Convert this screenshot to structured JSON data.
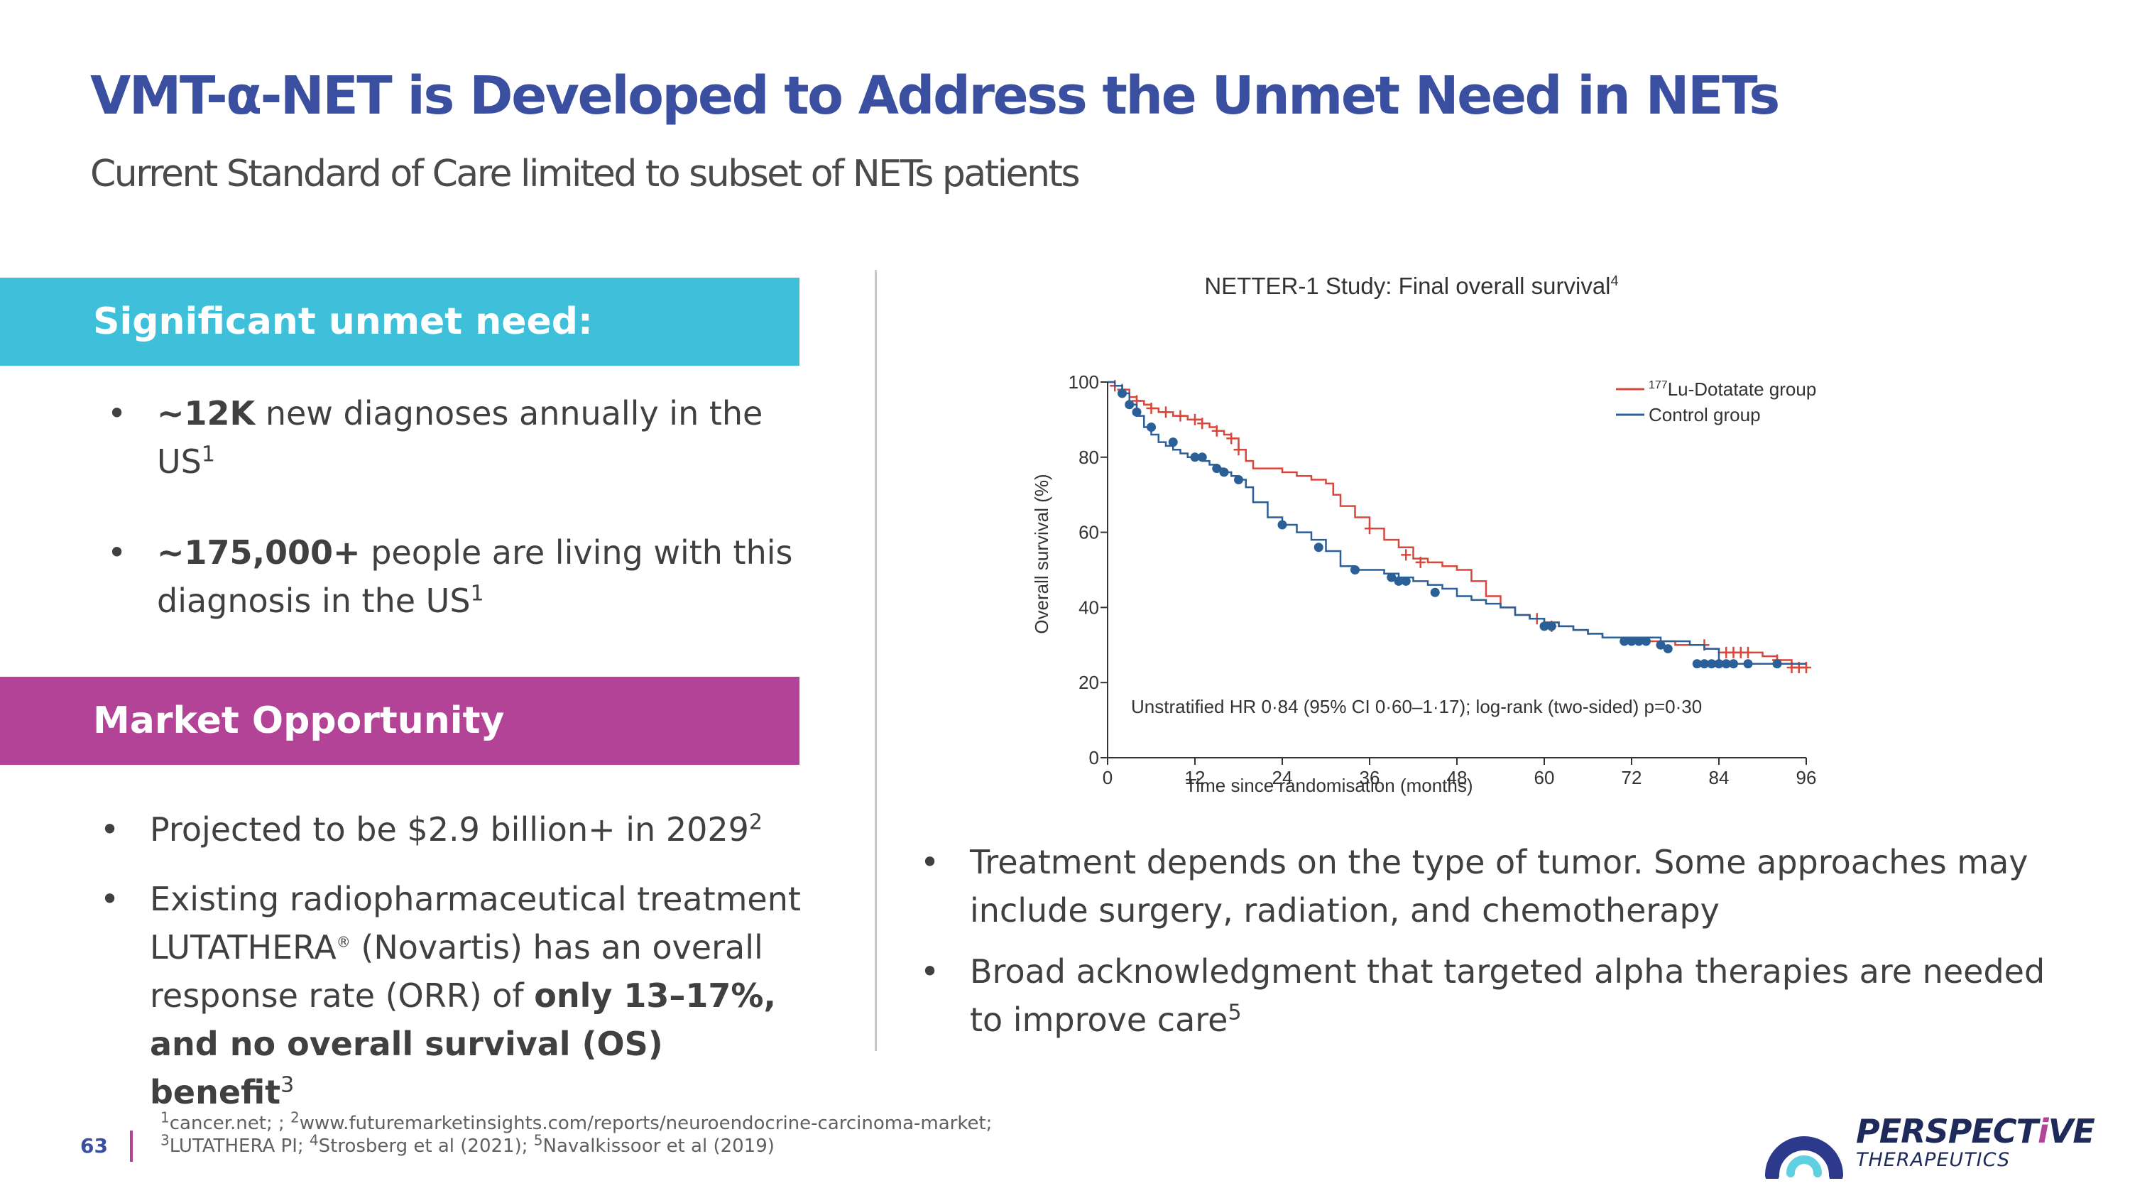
{
  "title": "VMT-α-NET is Developed to Address the Unmet Need in NETs",
  "subtitle": "Current Standard of Care limited to subset of NETs patients",
  "sections": {
    "need": {
      "heading": "Significant unmet need:",
      "bullets": [
        {
          "bold": "~12K",
          "text": " new diagnoses annually in the US",
          "sup": "1"
        },
        {
          "bold": "~175,000+",
          "text": " people are living with this diagnosis in the US",
          "sup": "1"
        }
      ]
    },
    "market": {
      "heading": "Market Opportunity",
      "bullets": [
        {
          "text": "Projected to be $2.9 billion+ in 2029",
          "sup": "2"
        },
        {
          "text_a": "Existing radiopharmaceutical treatment LUTATHERA",
          "reg": "®",
          "text_b": " (Novartis) has an overall response rate (ORR) of ",
          "bold": "only 13–17%, and no overall survival (OS) benefit",
          "sup": "3"
        }
      ]
    }
  },
  "right_bullets": [
    {
      "text": "Treatment depends on the type of tumor. Some approaches may include surgery, radiation, and chemotherapy"
    },
    {
      "text": "Broad acknowledgment that targeted alpha therapies are needed to improve care",
      "sup": "5"
    }
  ],
  "bullet_char": "•",
  "chart_data": {
    "type": "line",
    "title": "NETTER-1 Study: Final overall survival",
    "title_sup": "4",
    "xlabel": "Time since randomisation (months)",
    "ylabel": "Overall survival (%)",
    "xlim": [
      0,
      96
    ],
    "ylim": [
      0,
      100
    ],
    "xticks": [
      0,
      12,
      24,
      36,
      48,
      60,
      72,
      84,
      96
    ],
    "yticks": [
      0,
      20,
      40,
      60,
      80,
      100
    ],
    "annotation": "Unstratified HR 0·84 (95% CI 0·60–1·17); log-rank (two-sided) p=0·30",
    "legend_position": "top-right",
    "series": [
      {
        "name": "Lu-Dotatate group",
        "name_sup": "177",
        "color": "#d9473a",
        "censor": "plus",
        "x": [
          0,
          1,
          2,
          3,
          4,
          5,
          6,
          7,
          8,
          9,
          10,
          11,
          12,
          13,
          14,
          15,
          16,
          17,
          18,
          19,
          20,
          22,
          24,
          26,
          28,
          30,
          31,
          32,
          34,
          36,
          38,
          40,
          42,
          44,
          46,
          48,
          50,
          52,
          54,
          56,
          58,
          60,
          62,
          64,
          66,
          68,
          70,
          72,
          74,
          76,
          78,
          80,
          82,
          84,
          86,
          88,
          90,
          92,
          94,
          96
        ],
        "y": [
          100,
          99,
          98,
          96,
          95,
          94,
          93,
          92,
          92,
          91,
          91,
          90,
          90,
          89,
          88,
          87,
          86,
          85,
          82,
          79,
          77,
          77,
          76,
          75,
          74,
          73,
          70,
          67,
          64,
          61,
          58,
          56,
          53,
          52,
          51,
          50,
          47,
          43,
          40,
          38,
          37,
          36,
          35,
          34,
          33,
          32,
          32,
          31,
          31,
          31,
          30,
          30,
          29,
          28,
          28,
          28,
          27,
          26,
          24,
          24
        ],
        "censored_x": [
          1,
          2,
          4,
          6,
          8,
          10,
          12,
          13,
          15,
          17,
          18,
          36,
          41,
          43,
          59,
          61,
          82,
          85,
          86,
          87,
          88,
          92,
          94,
          95,
          96
        ],
        "censored_y": [
          99,
          98,
          95,
          93,
          92,
          91,
          90,
          89,
          87,
          85,
          82,
          61,
          54,
          52,
          37,
          35,
          30,
          28,
          28,
          28,
          28,
          26,
          24,
          24,
          24
        ]
      },
      {
        "name": "Control group",
        "color": "#2a5f98",
        "censor": "dot",
        "x": [
          0,
          1,
          2,
          3,
          4,
          5,
          6,
          7,
          8,
          9,
          10,
          11,
          12,
          13,
          14,
          15,
          16,
          17,
          18,
          19,
          20,
          22,
          24,
          26,
          28,
          30,
          32,
          34,
          36,
          38,
          40,
          42,
          44,
          46,
          48,
          50,
          52,
          54,
          56,
          58,
          60,
          62,
          64,
          66,
          68,
          70,
          72,
          74,
          76,
          78,
          80,
          82,
          84,
          86,
          88,
          90,
          92,
          94,
          96
        ],
        "y": [
          100,
          99,
          97,
          94,
          91,
          88,
          86,
          84,
          83,
          82,
          81,
          80,
          80,
          79,
          78,
          77,
          76,
          75,
          74,
          72,
          68,
          64,
          62,
          60,
          58,
          55,
          51,
          50,
          50,
          49,
          48,
          47,
          46,
          45,
          43,
          42,
          41,
          40,
          38,
          37,
          36,
          35,
          34,
          33,
          32,
          32,
          32,
          32,
          31,
          31,
          30,
          29,
          25,
          25,
          25,
          25,
          25,
          25,
          25
        ],
        "censored_x": [
          2,
          3,
          4,
          6,
          9,
          12,
          13,
          15,
          16,
          18,
          24,
          29,
          34,
          39,
          40,
          41,
          45,
          60,
          61,
          71,
          72,
          73,
          74,
          76,
          77,
          81,
          82,
          83,
          84,
          85,
          86,
          88,
          92
        ],
        "censored_y": [
          97,
          94,
          92,
          88,
          84,
          80,
          80,
          77,
          76,
          74,
          62,
          56,
          50,
          48,
          47,
          47,
          44,
          35,
          35,
          31,
          31,
          31,
          31,
          30,
          29,
          25,
          25,
          25,
          25,
          25,
          25,
          25,
          25
        ]
      }
    ]
  },
  "footnotes": {
    "line1_a": "cancer.net; ; ",
    "line1_b": "www.futuremarketinsights.com/reports/neuroendocrine-carcinoma-market;",
    "line2_a": "LUTATHERA PI; ",
    "line2_b": "Strosberg et al (2021); ",
    "line2_c": "Navalkissoor et al (2019)",
    "sup1": "1",
    "sup2": "2",
    "sup3": "3",
    "sup4": "4",
    "sup5": "5"
  },
  "page_number": "63",
  "logo": {
    "name_a": "PERSPECT",
    "name_accent": "i",
    "name_b": "VE",
    "tagline": "THERAPEUTICS"
  }
}
